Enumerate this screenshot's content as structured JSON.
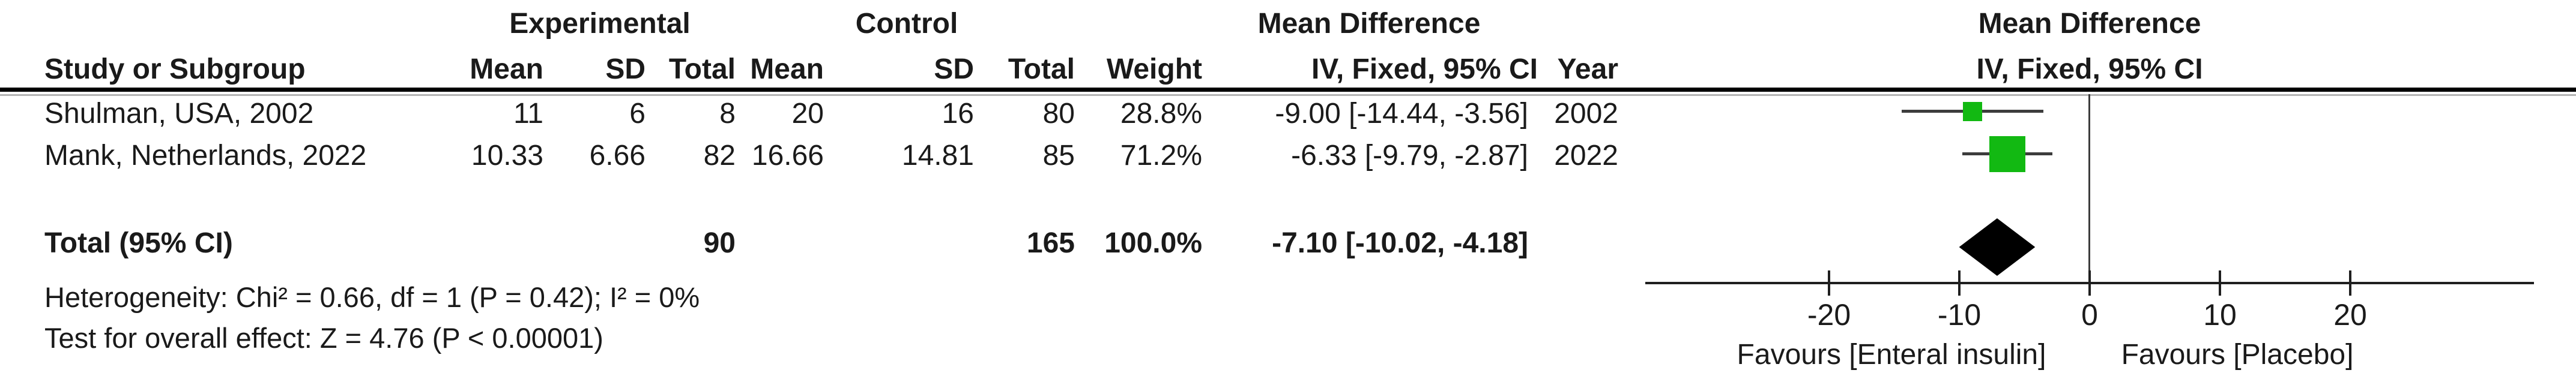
{
  "table": {
    "headers": {
      "group_experimental": "Experimental",
      "group_control": "Control",
      "mean_difference": "Mean Difference",
      "study": "Study or Subgroup",
      "mean": "Mean",
      "sd": "SD",
      "total": "Total",
      "weight": "Weight",
      "iv_fixed": "IV, Fixed, 95% CI",
      "year": "Year"
    },
    "rows": [
      {
        "study": "Shulman, USA, 2002",
        "exp_mean": "11",
        "exp_sd": "6",
        "exp_total": "8",
        "ctl_mean": "20",
        "ctl_sd": "16",
        "ctl_total": "80",
        "weight": "28.8%",
        "ci": "-9.00 [-14.44, -3.56]",
        "year": "2002"
      },
      {
        "study": "Mank, Netherlands, 2022",
        "exp_mean": "10.33",
        "exp_sd": "6.66",
        "exp_total": "82",
        "ctl_mean": "16.66",
        "ctl_sd": "14.81",
        "ctl_total": "85",
        "weight": "71.2%",
        "ci": "-6.33 [-9.79, -2.87]",
        "year": "2022"
      }
    ],
    "total_row": {
      "label": "Total (95% CI)",
      "exp_total": "90",
      "ctl_total": "165",
      "weight": "100.0%",
      "ci": "-7.10 [-10.02, -4.18]"
    },
    "heterogeneity": "Heterogeneity: Chi² = 0.66, df = 1 (P = 0.42); I² = 0%",
    "overall_effect": "Test for overall effect: Z = 4.76 (P < 0.00001)"
  },
  "chart_data": {
    "type": "forest",
    "title": "Mean Difference",
    "method": "IV, Fixed, 95% CI",
    "studies": [
      {
        "name": "Shulman, USA, 2002",
        "year": 2002,
        "md": -9.0,
        "ci_low": -14.44,
        "ci_high": -3.56,
        "weight_pct": 28.8
      },
      {
        "name": "Mank, Netherlands, 2022",
        "year": 2022,
        "md": -6.33,
        "ci_low": -9.79,
        "ci_high": -2.87,
        "weight_pct": 71.2
      }
    ],
    "total": {
      "label": "Total (95% CI)",
      "md": -7.1,
      "ci_low": -10.02,
      "ci_high": -4.18,
      "weight_pct": 100.0
    },
    "heterogeneity": {
      "chi2": 0.66,
      "df": 1,
      "p": 0.42,
      "i2_pct": 0
    },
    "overall_effect": {
      "z": 4.76,
      "p": "< 0.00001"
    },
    "xlim": [
      -34,
      34
    ],
    "ticks": [
      -20,
      -10,
      0,
      10,
      20
    ],
    "grid": false,
    "favours_left": "Favours [Enteral insulin]",
    "favours_right": "Favours [Placebo]",
    "marker_color": "#12b912",
    "ci_line_color": "#3d3d3d",
    "diamond_color": "#000000"
  }
}
